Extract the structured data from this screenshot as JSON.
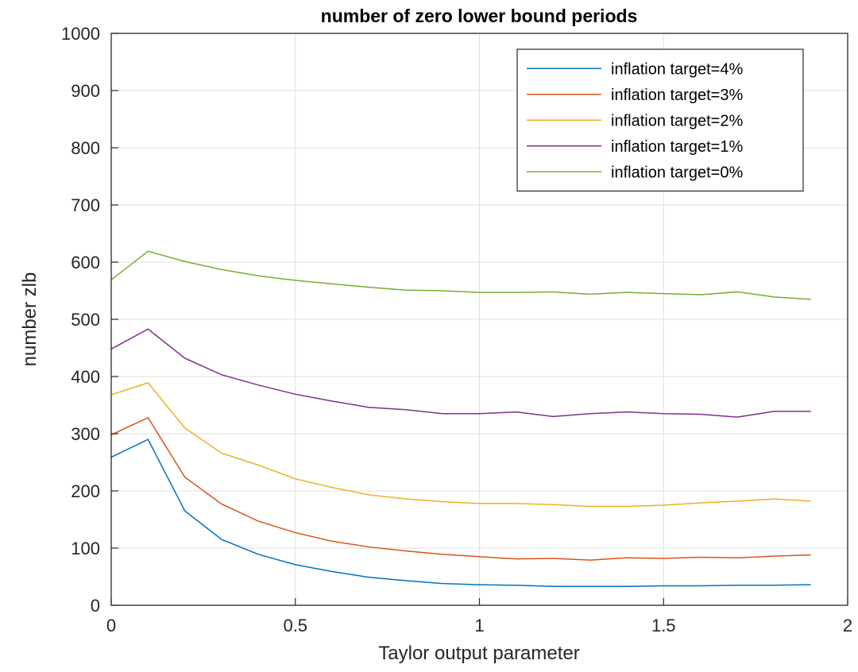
{
  "chart_data": {
    "type": "line",
    "title": "number of zero lower bound periods",
    "xlabel": "Taylor output parameter",
    "ylabel": "number zlb",
    "xlim": [
      0,
      2
    ],
    "ylim": [
      0,
      1000
    ],
    "xticks": [
      0,
      0.5,
      1,
      1.5,
      2
    ],
    "xtick_labels": [
      "0",
      "0.5",
      "1",
      "1.5",
      "2"
    ],
    "yticks": [
      0,
      100,
      200,
      300,
      400,
      500,
      600,
      700,
      800,
      900,
      1000
    ],
    "ytick_labels": [
      "0",
      "100",
      "200",
      "300",
      "400",
      "500",
      "600",
      "700",
      "800",
      "900",
      "1000"
    ],
    "grid": true,
    "legend_position": "top-right",
    "x": [
      0,
      0.1,
      0.2,
      0.3,
      0.4,
      0.5,
      0.6,
      0.7,
      0.8,
      0.9,
      1.0,
      1.1,
      1.2,
      1.3,
      1.4,
      1.5,
      1.6,
      1.7,
      1.8,
      1.9
    ],
    "series": [
      {
        "name": "inflation target=4%",
        "color": "#0072BD",
        "values": [
          259,
          290,
          165,
          115,
          89,
          71,
          59,
          49,
          43,
          38,
          36,
          35,
          33,
          33,
          33,
          34,
          34,
          35,
          35,
          36
        ]
      },
      {
        "name": "inflation target=3%",
        "color": "#D95319",
        "values": [
          298,
          328,
          224,
          177,
          147,
          127,
          112,
          102,
          95,
          89,
          85,
          81,
          82,
          79,
          83,
          82,
          84,
          83,
          86,
          88
        ]
      },
      {
        "name": "inflation target=2%",
        "color": "#EDB120",
        "values": [
          368,
          389,
          310,
          266,
          245,
          221,
          206,
          193,
          186,
          181,
          178,
          178,
          176,
          173,
          173,
          175,
          179,
          182,
          186,
          182
        ]
      },
      {
        "name": "inflation target=1%",
        "color": "#7E2F8E",
        "values": [
          448,
          483,
          432,
          403,
          385,
          369,
          357,
          346,
          342,
          335,
          335,
          338,
          330,
          335,
          338,
          335,
          334,
          329,
          339,
          339
        ]
      },
      {
        "name": "inflation target=0%",
        "color": "#77AC30",
        "values": [
          569,
          619,
          601,
          587,
          576,
          568,
          562,
          556,
          551,
          550,
          547,
          547,
          548,
          544,
          547,
          545,
          543,
          548,
          539,
          535
        ]
      }
    ]
  }
}
